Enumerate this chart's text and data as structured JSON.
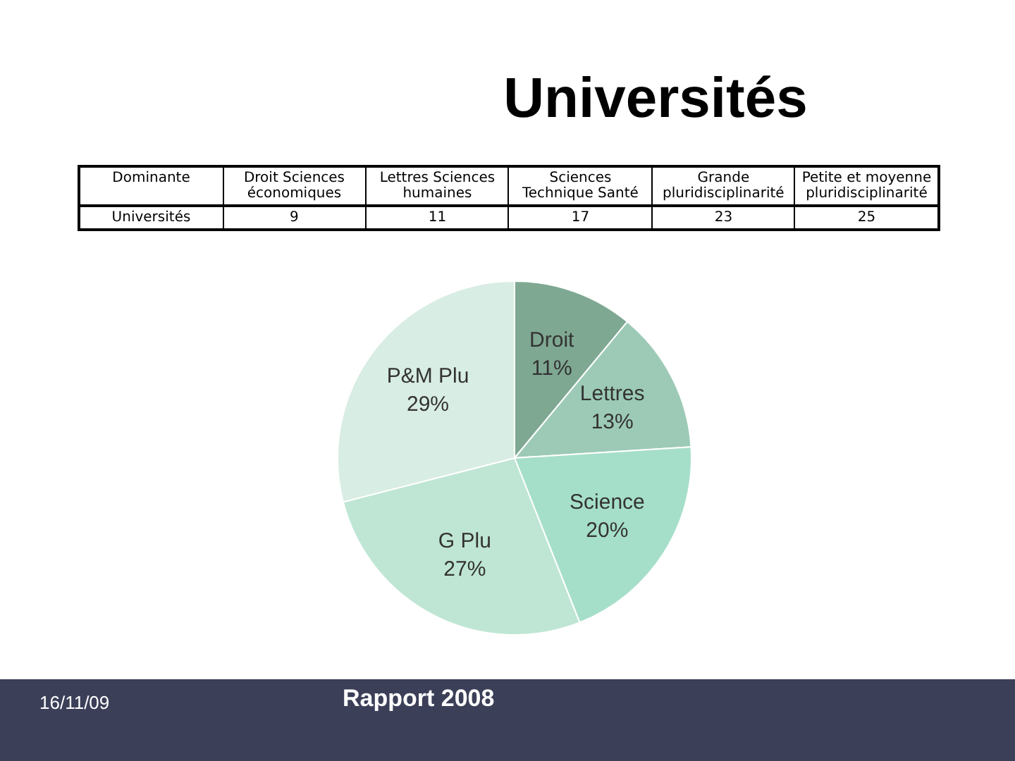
{
  "chart_data": [
    {
      "type": "other",
      "title": "Universités",
      "xlabel": "Dominante",
      "ylabel": "Universités",
      "categories": [
        "Droit Sciences économiques",
        "Lettres Sciences humaines",
        "Sciences Technique Santé",
        "Grande pluridisciplinarité",
        "Petite et moyenne pluridisciplinarité"
      ],
      "values": [
        9,
        11,
        17,
        23,
        25
      ],
      "data_labels": true
    },
    {
      "type": "pie",
      "categories": [
        "Droit",
        "Lettres",
        "Science",
        "G Plu",
        "P&M Plu"
      ],
      "values": [
        11,
        13,
        20,
        27,
        29
      ],
      "colors": [
        "#7fa893",
        "#9ccab6",
        "#a6dfc9",
        "#bfe6d4",
        "#d8ede3"
      ],
      "value_labels": [
        "11%",
        "13%",
        "20%",
        "27%",
        "29%"
      ],
      "annotations": [
        "16/11/09",
        "Rapport 2008"
      ]
    }
  ]
}
